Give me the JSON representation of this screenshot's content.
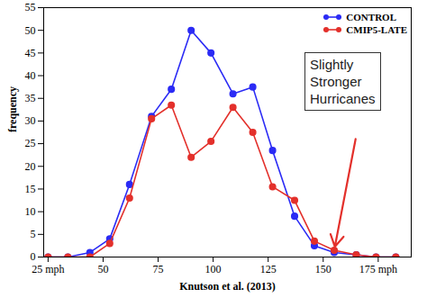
{
  "chart_data": {
    "type": "line",
    "x_label": "Knutson et al. (2013)",
    "y_label": "frequency",
    "annotation": "Slightly\nStronger\nHurricanes",
    "x": [
      25,
      34,
      44,
      53,
      62,
      72,
      81,
      90,
      99,
      109,
      118,
      127,
      137,
      146,
      155,
      165,
      174,
      183
    ],
    "series": [
      {
        "name": "CONTROL",
        "color": "#2b2bf5",
        "marker": "circle",
        "values": [
          0,
          0,
          1,
          4,
          16,
          31,
          37,
          50,
          45,
          36,
          37.5,
          23.5,
          9,
          2.5,
          1,
          0.5,
          0,
          0
        ]
      },
      {
        "name": "CMIP5-LATE",
        "color": "#e3302b",
        "marker": "circle",
        "values": [
          0,
          0,
          0,
          3,
          13,
          30.5,
          33.5,
          22,
          25.5,
          33,
          27.5,
          15.5,
          12.5,
          3.5,
          1.5,
          0.5,
          0,
          0
        ]
      }
    ],
    "xlim": [
      23,
      190
    ],
    "xticks": [
      {
        "value": 25,
        "label": "25 mph"
      },
      50,
      75,
      100,
      125,
      150,
      {
        "value": 175,
        "label": "175 mph"
      }
    ],
    "ylim": [
      0,
      55
    ],
    "yticks": [
      0,
      5,
      10,
      15,
      20,
      25,
      30,
      35,
      40,
      45,
      50,
      55
    ],
    "grid": false,
    "legend": "top-right"
  }
}
